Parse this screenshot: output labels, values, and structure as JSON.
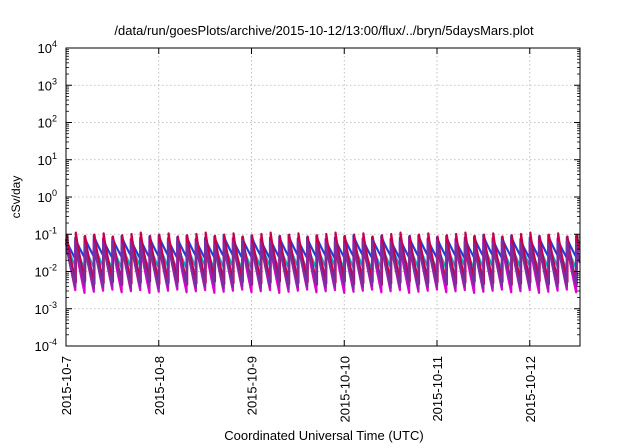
{
  "chart_data": {
    "type": "line",
    "title": "/data/run/goesPlots/archive/2015-10-12/13:00/flux/../bryn/5daysMars.plot",
    "xlabel": "Coordinated Universal Time (UTC)",
    "ylabel": "cSv/day",
    "x_tick_labels": [
      "2015-10-7",
      "2015-10-8",
      "2015-10-9",
      "2015-10-10",
      "2015-10-11",
      "2015-10-12"
    ],
    "x_range": [
      "2015-10-07T00:00",
      "2015-10-12T13:00"
    ],
    "y_scale": "log",
    "ylim": [
      0.0001,
      10000
    ],
    "y_ticks": [
      {
        "base": "10",
        "exp": "4"
      },
      {
        "base": "10",
        "exp": "3"
      },
      {
        "base": "10",
        "exp": "2"
      },
      {
        "base": "10",
        "exp": "1"
      },
      {
        "base": "10",
        "exp": "0"
      },
      {
        "base": "10",
        "exp": "-1"
      },
      {
        "base": "10",
        "exp": "-2"
      },
      {
        "base": "10",
        "exp": "-3"
      },
      {
        "base": "10",
        "exp": "-4"
      }
    ],
    "grid": true,
    "legend": "none",
    "pattern": "sawtooth, period ≈ 2.4 h, each cycle jumps to its peak then decays toward its trough",
    "series": [
      {
        "color": "#1f3fd6",
        "peak": 0.085,
        "trough": 0.025
      },
      {
        "color": "#00b4c8",
        "peak": 0.05,
        "trough": 0.012
      },
      {
        "color": "#e000d0",
        "peak": 0.07,
        "trough": 0.003
      },
      {
        "color": "#c8004a",
        "peak": 0.1,
        "trough": 0.005
      },
      {
        "color": "#7a2ea0",
        "peak": 0.06,
        "trough": 0.004
      }
    ]
  }
}
